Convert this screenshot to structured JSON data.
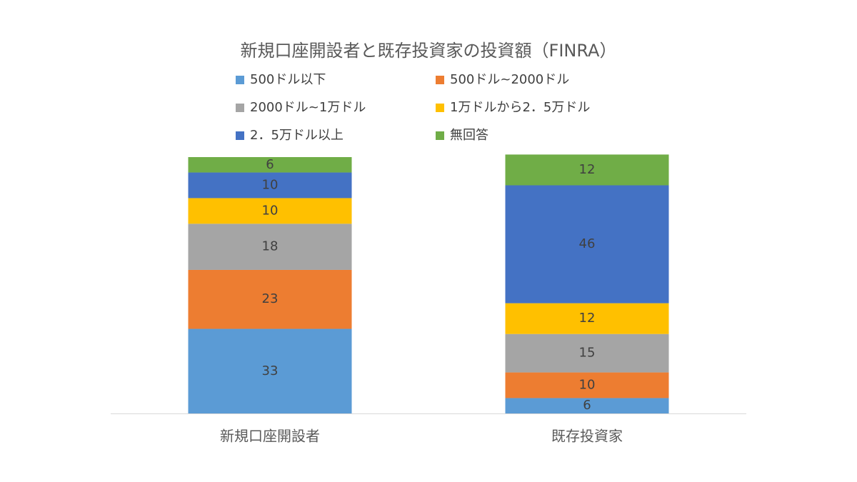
{
  "chart_data": {
    "type": "stacked_bar",
    "title": "新規口座開設者と既存投資家の投資額（FINRA）",
    "categories": [
      "新規口座開設者",
      "既存投資家"
    ],
    "series": [
      {
        "name": "500ドル以下",
        "color": "#5b9bd5",
        "values": [
          33,
          6
        ]
      },
      {
        "name": "500ドル~2000ドル",
        "color": "#ed7d31",
        "values": [
          23,
          10
        ]
      },
      {
        "name": "2000ドル~1万ドル",
        "color": "#a5a5a5",
        "values": [
          18,
          15
        ]
      },
      {
        "name": "1万ドルから2．5万ドル",
        "color": "#ffc000",
        "values": [
          10,
          12
        ]
      },
      {
        "name": "2．5万ドル以上",
        "color": "#4472c4",
        "values": [
          10,
          46
        ]
      },
      {
        "name": "無回答",
        "color": "#70ad47",
        "values": [
          6,
          12
        ]
      }
    ]
  }
}
